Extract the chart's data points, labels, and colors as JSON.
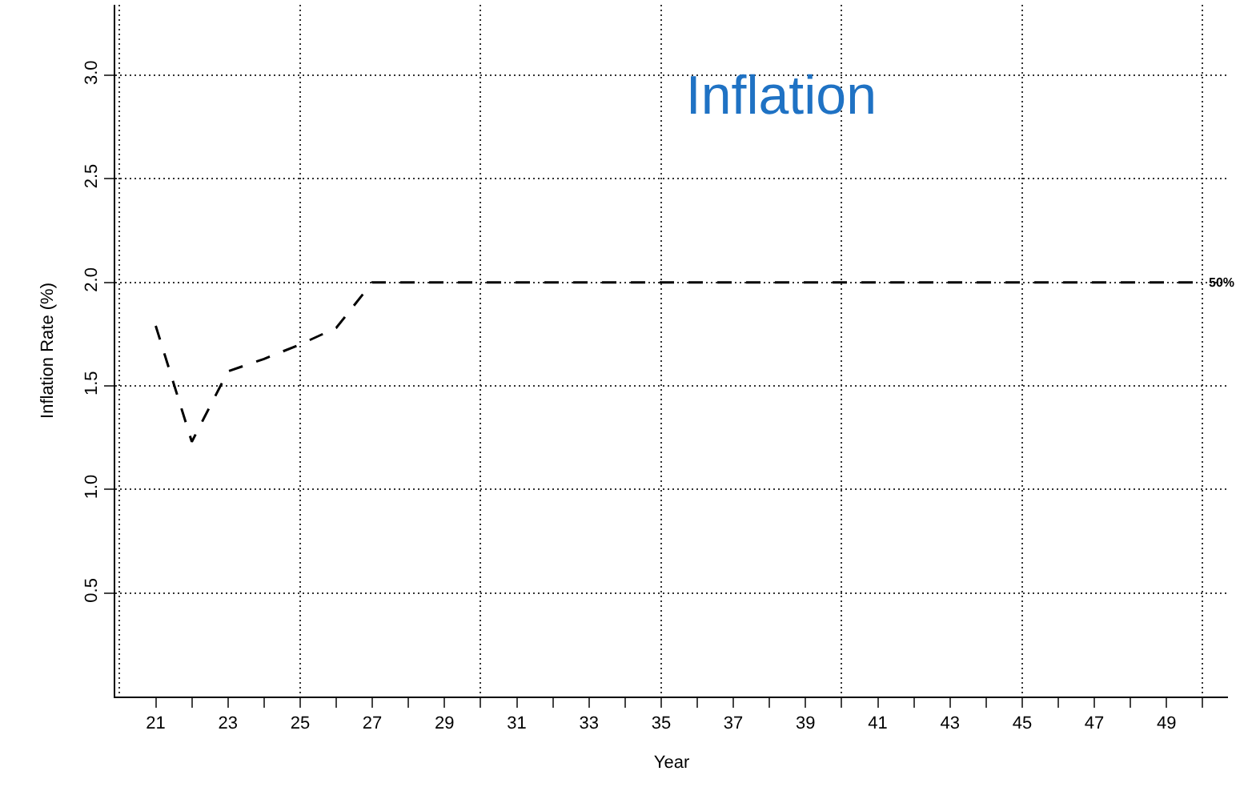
{
  "chart_data": {
    "type": "line",
    "title": "Inflation",
    "xlabel": "Year",
    "ylabel": "Inflation Rate (%)",
    "x": [
      21,
      22,
      23,
      24,
      25,
      26,
      27,
      28,
      29,
      30,
      31,
      32,
      33,
      34,
      35,
      36,
      37,
      38,
      39,
      40,
      41,
      42,
      43,
      44,
      45,
      46,
      47,
      48,
      49,
      50
    ],
    "series": [
      {
        "color": "#000000",
        "values": [
          1.79,
          1.23,
          1.57,
          1.63,
          1.7,
          1.78,
          2.0,
          2.0,
          2.0,
          2.0,
          2.0,
          2.0,
          2.0,
          2.0,
          2.0,
          2.0,
          2.0,
          2.0,
          2.0,
          2.0,
          2.0,
          2.0,
          2.0,
          2.0,
          2.0,
          2.0,
          2.0,
          2.0,
          2.0,
          2.0
        ]
      }
    ],
    "annotations": [
      {
        "text": "50%",
        "x": 50,
        "y": 2.0
      }
    ],
    "xlim": [
      19.88,
      50.7
    ],
    "ylim": [
      0,
      3.34
    ],
    "xticks": [
      21,
      {
        "value": 22,
        "label": null
      },
      23,
      {
        "value": 24,
        "label": null
      },
      25,
      {
        "value": 26,
        "label": null
      },
      27,
      {
        "value": 28,
        "label": null
      },
      29,
      {
        "value": 30,
        "label": null
      },
      31,
      {
        "value": 32,
        "label": null
      },
      33,
      {
        "value": 34,
        "label": null
      },
      35,
      {
        "value": 36,
        "label": null
      },
      37,
      {
        "value": 38,
        "label": null
      },
      39,
      {
        "value": 40,
        "label": null
      },
      41,
      {
        "value": 42,
        "label": null
      },
      43,
      {
        "value": 44,
        "label": null
      },
      45,
      {
        "value": 46,
        "label": null
      },
      47,
      {
        "value": 48,
        "label": null
      },
      49,
      {
        "value": 50,
        "label": null
      }
    ],
    "yticks": [
      {
        "value": 0.5,
        "label": "0.5"
      },
      {
        "value": 1.0,
        "label": "1.0"
      },
      {
        "value": 1.5,
        "label": "1.5"
      },
      {
        "value": 2.0,
        "label": "2.0"
      },
      {
        "value": 2.5,
        "label": "2.5"
      },
      {
        "value": 3.0,
        "label": "3.0"
      }
    ],
    "grid": true,
    "line_style": "dashed",
    "marker": "none"
  }
}
